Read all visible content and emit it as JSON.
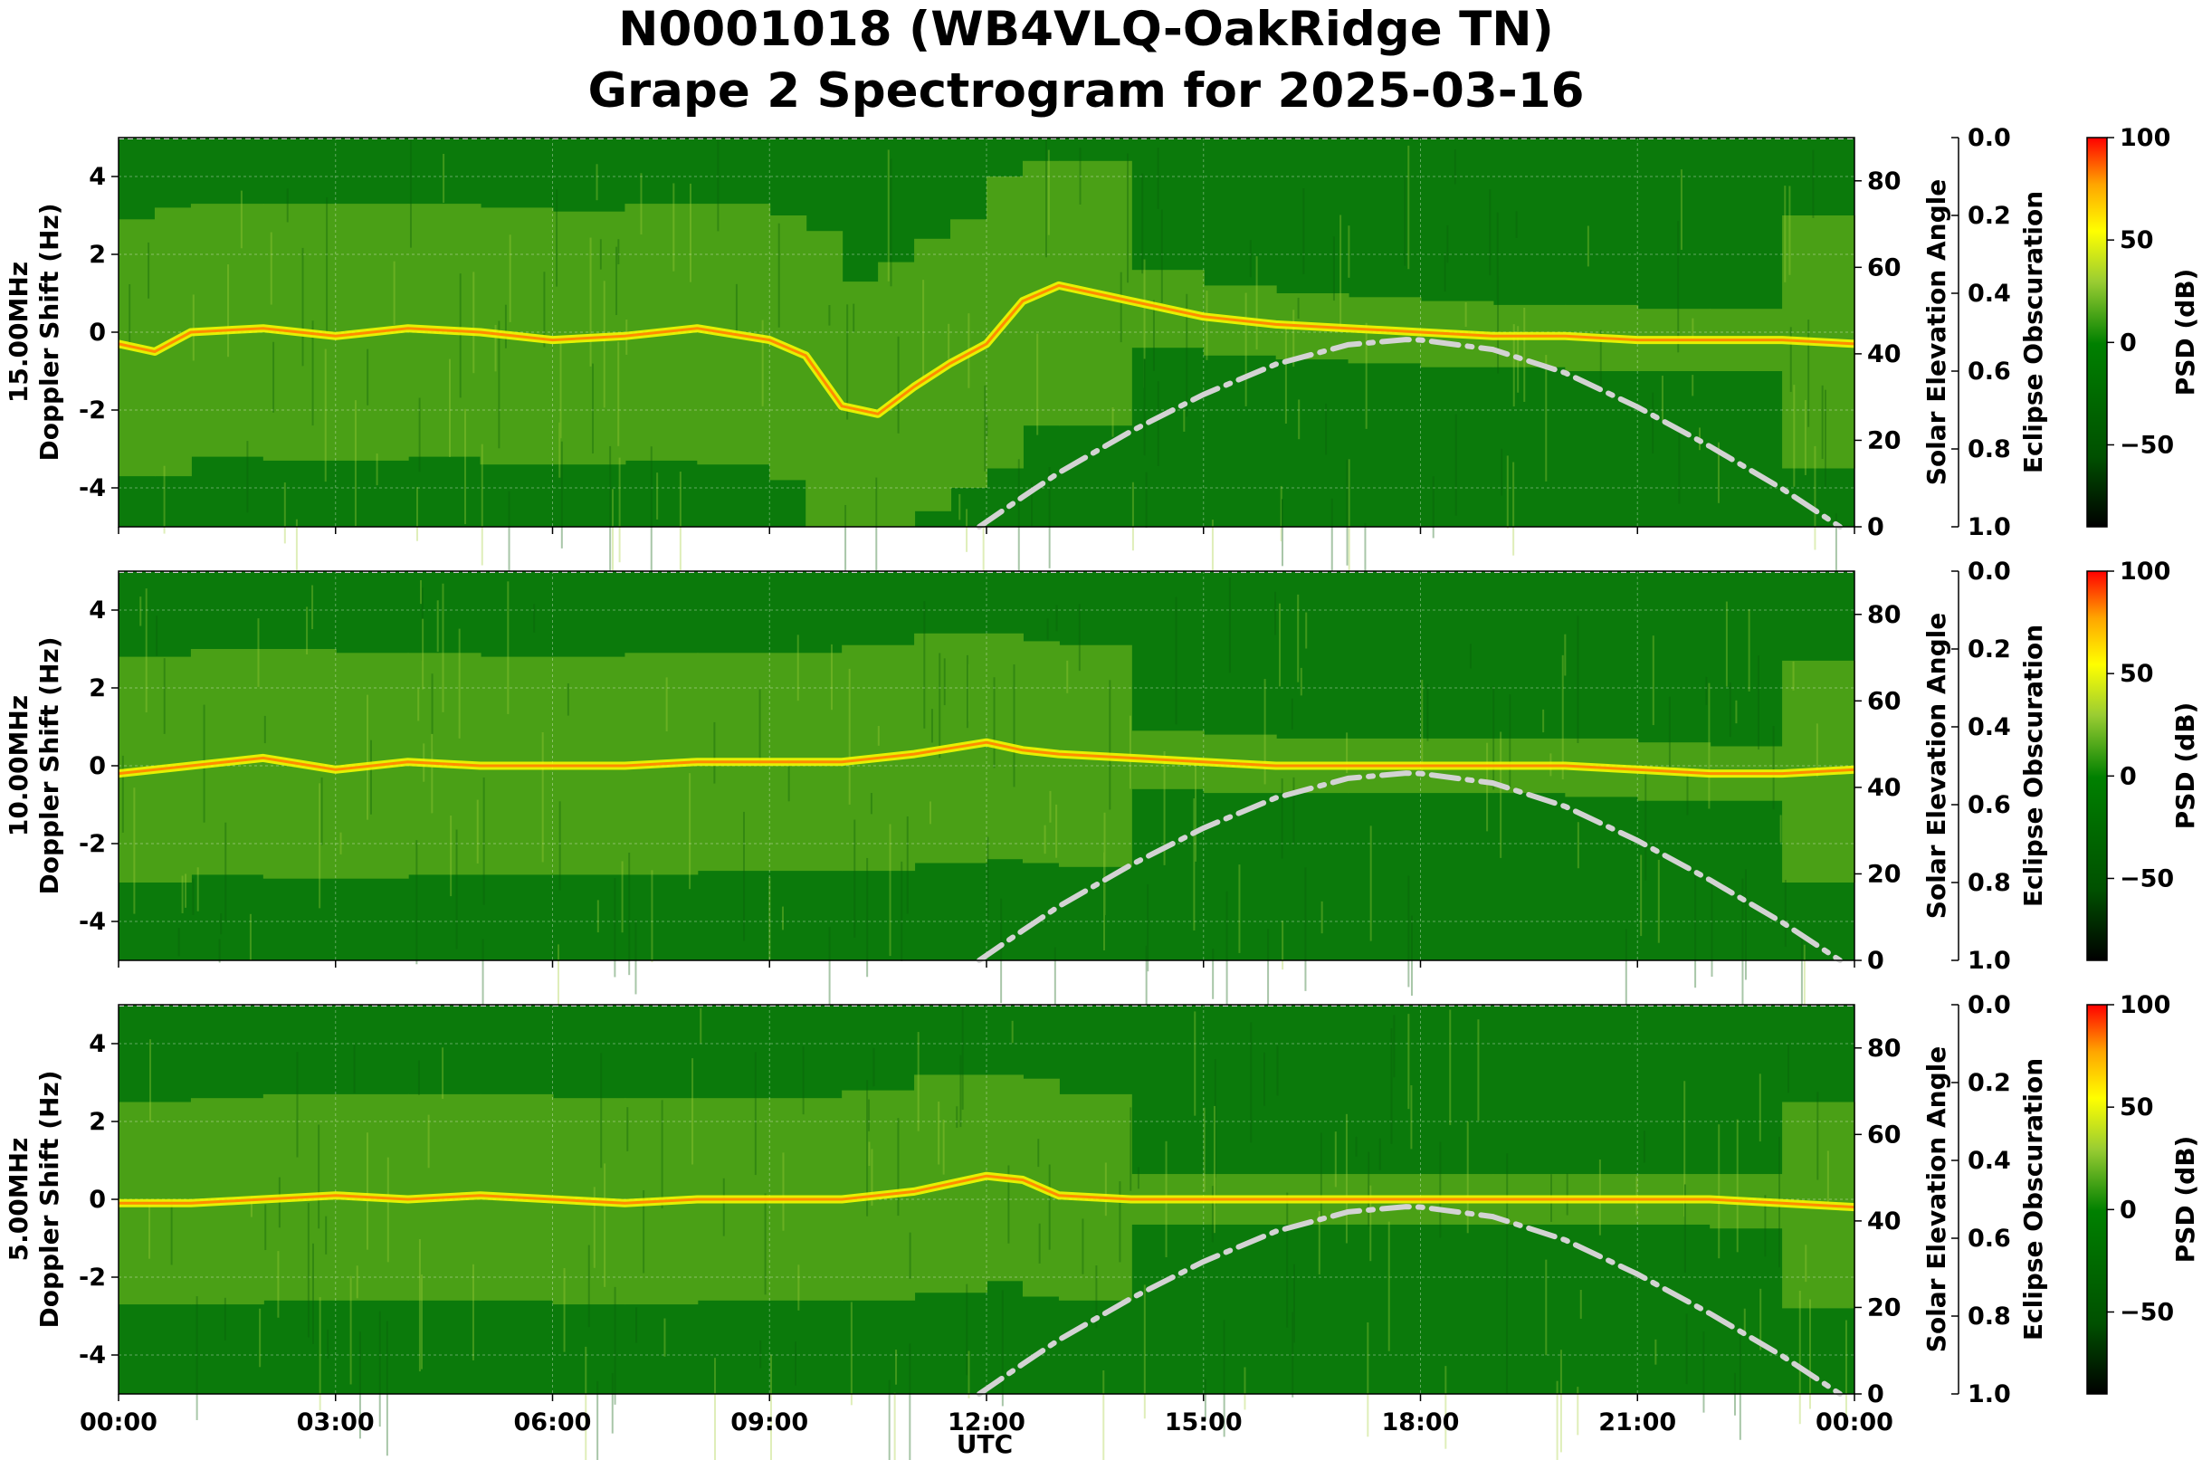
{
  "chart_data": {
    "type": "heatmap",
    "title_line1": "N0001018 (WB4VLQ-OakRidge TN)",
    "title_line2": "Grape 2 Spectrogram for 2025-03-16",
    "xlabel": "UTC",
    "x_ticks": [
      "00:00",
      "03:00",
      "06:00",
      "09:00",
      "12:00",
      "15:00",
      "18:00",
      "21:00",
      "00:00"
    ],
    "x_range_hours": [
      0,
      24
    ],
    "ylabel": "Doppler Shift (Hz)",
    "ylim": [
      -5,
      5
    ],
    "y_ticks": [
      4,
      2,
      0,
      -2,
      -4
    ],
    "y2label": "Solar Elevation Angle",
    "y2lim": [
      0,
      90
    ],
    "y2_ticks": [
      0,
      20,
      40,
      60,
      80
    ],
    "y3label": "Eclipse Obscuration",
    "y3lim": [
      0.0,
      1.0
    ],
    "y3_ticks": [
      "0.0",
      "0.2",
      "0.4",
      "0.6",
      "0.8",
      "1.0"
    ],
    "colorbar_label": "PSD (dB)",
    "colorbar_range": [
      -90,
      100
    ],
    "colorbar_ticks": [
      "100",
      "50",
      "0",
      "−50"
    ],
    "colormap": [
      "#000000",
      "#006400",
      "#008000",
      "#9acd32",
      "#ffff00",
      "#ffa500",
      "#ff0000"
    ],
    "grid": true,
    "panels": [
      {
        "label": "15.00MHz",
        "carrier_trace": [
          [
            0,
            -0.3
          ],
          [
            0.5,
            -0.5
          ],
          [
            1,
            0
          ],
          [
            2,
            0.1
          ],
          [
            3,
            -0.1
          ],
          [
            4,
            0.1
          ],
          [
            5,
            0
          ],
          [
            6,
            -0.2
          ],
          [
            7,
            -0.1
          ],
          [
            8,
            0.1
          ],
          [
            9,
            -0.2
          ],
          [
            9.5,
            -0.6
          ],
          [
            10,
            -1.9
          ],
          [
            10.5,
            -2.1
          ],
          [
            11,
            -1.4
          ],
          [
            11.5,
            -0.8
          ],
          [
            12,
            -0.3
          ],
          [
            12.5,
            0.8
          ],
          [
            13,
            1.2
          ],
          [
            14,
            0.8
          ],
          [
            15,
            0.4
          ],
          [
            16,
            0.2
          ],
          [
            17,
            0.1
          ],
          [
            18,
            0
          ],
          [
            19,
            -0.1
          ],
          [
            20,
            -0.1
          ],
          [
            21,
            -0.2
          ],
          [
            22,
            -0.2
          ],
          [
            23,
            -0.2
          ],
          [
            24,
            -0.3
          ]
        ]
      },
      {
        "label": "10.00MHz",
        "carrier_trace": [
          [
            0,
            -0.2
          ],
          [
            1,
            0
          ],
          [
            2,
            0.2
          ],
          [
            3,
            -0.1
          ],
          [
            4,
            0.1
          ],
          [
            5,
            0
          ],
          [
            6,
            0
          ],
          [
            7,
            0
          ],
          [
            8,
            0.1
          ],
          [
            9,
            0.1
          ],
          [
            10,
            0.1
          ],
          [
            11,
            0.3
          ],
          [
            12,
            0.6
          ],
          [
            12.5,
            0.4
          ],
          [
            13,
            0.3
          ],
          [
            14,
            0.2
          ],
          [
            15,
            0.1
          ],
          [
            16,
            0
          ],
          [
            17,
            0
          ],
          [
            18,
            0
          ],
          [
            19,
            0
          ],
          [
            20,
            0
          ],
          [
            21,
            -0.1
          ],
          [
            22,
            -0.2
          ],
          [
            23,
            -0.2
          ],
          [
            24,
            -0.1
          ]
        ]
      },
      {
        "label": "5.00MHz",
        "carrier_trace": [
          [
            0,
            -0.1
          ],
          [
            1,
            -0.1
          ],
          [
            2,
            0
          ],
          [
            3,
            0.1
          ],
          [
            4,
            0
          ],
          [
            5,
            0.1
          ],
          [
            6,
            0
          ],
          [
            7,
            -0.1
          ],
          [
            8,
            0
          ],
          [
            9,
            0
          ],
          [
            10,
            0
          ],
          [
            11,
            0.2
          ],
          [
            12,
            0.6
          ],
          [
            12.5,
            0.5
          ],
          [
            13,
            0.1
          ],
          [
            14,
            0
          ],
          [
            15,
            0
          ],
          [
            16,
            0
          ],
          [
            17,
            0
          ],
          [
            18,
            0
          ],
          [
            19,
            0
          ],
          [
            20,
            0
          ],
          [
            21,
            0
          ],
          [
            22,
            0
          ],
          [
            23,
            -0.1
          ],
          [
            24,
            -0.2
          ]
        ]
      }
    ],
    "solar_elevation": {
      "style": "dash-dot",
      "color": "#d3d3d3",
      "points": [
        [
          11.9,
          0
        ],
        [
          12.5,
          6.9
        ],
        [
          13,
          12.5
        ],
        [
          14,
          22.1
        ],
        [
          15,
          30.6
        ],
        [
          16,
          37.6
        ],
        [
          17,
          42.1
        ],
        [
          17.8,
          43.3
        ],
        [
          18,
          43.2
        ],
        [
          19,
          41.0
        ],
        [
          20,
          35.6
        ],
        [
          21,
          27.7
        ],
        [
          22,
          18.6
        ],
        [
          23,
          8.8
        ],
        [
          23.8,
          0
        ]
      ]
    }
  }
}
